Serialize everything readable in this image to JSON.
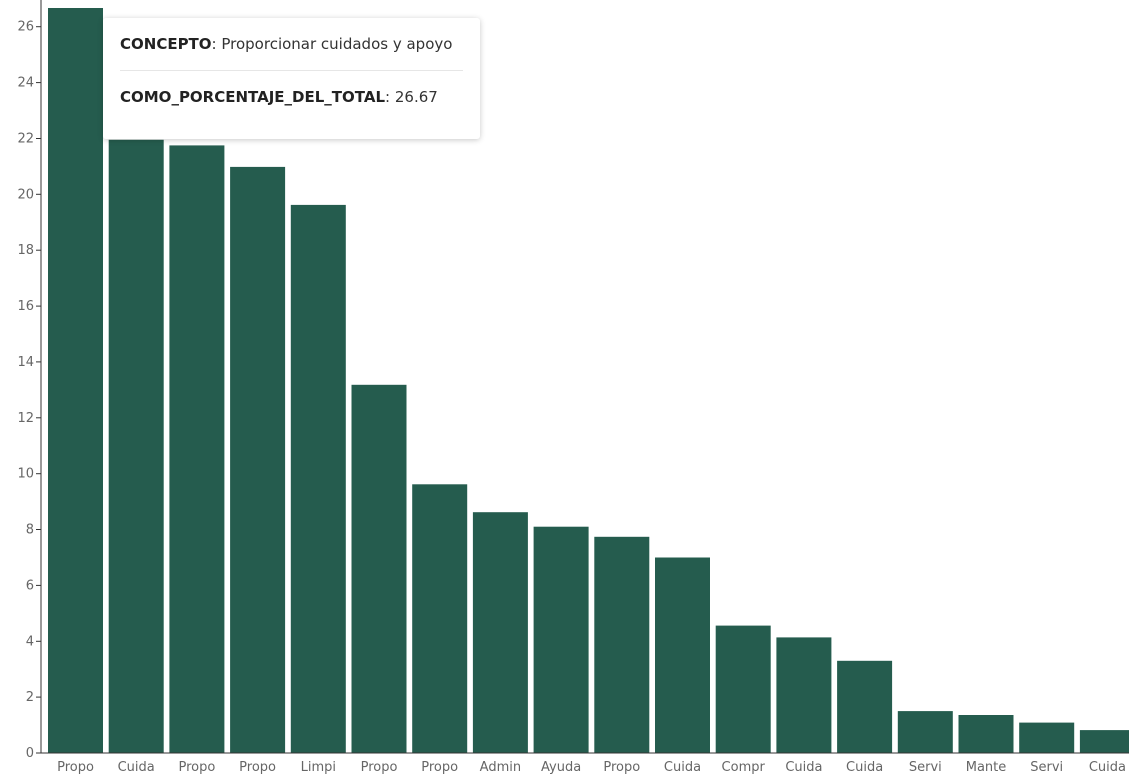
{
  "chart_data": {
    "type": "bar",
    "categories": [
      "Propo",
      "Cuida",
      "Propo",
      "Propo",
      "Limpi",
      "Propo",
      "Propo",
      "Admin",
      "Ayuda",
      "Propo",
      "Cuida",
      "Compr",
      "Cuida",
      "Cuida",
      "Servi",
      "Mante",
      "Servi",
      "Cuida"
    ],
    "values": [
      26.67,
      21.95,
      21.75,
      20.98,
      19.62,
      13.18,
      9.62,
      8.62,
      8.1,
      7.74,
      7.0,
      4.56,
      4.14,
      3.3,
      1.5,
      1.36,
      1.09,
      0.82
    ],
    "yticks": [
      0,
      2,
      4,
      6,
      8,
      10,
      12,
      14,
      16,
      18,
      20,
      22,
      24,
      26
    ],
    "ylim": [
      0,
      26.67
    ],
    "bar_color": "#255c4e",
    "grid": false
  },
  "tooltip": {
    "field1_label": "CONCEPTO",
    "field1_value": ": Proporcionar cuidados y apoyo",
    "field2_label": "COMO_PORCENTAJE_DEL_TOTAL",
    "field2_value": ": 26.67"
  }
}
